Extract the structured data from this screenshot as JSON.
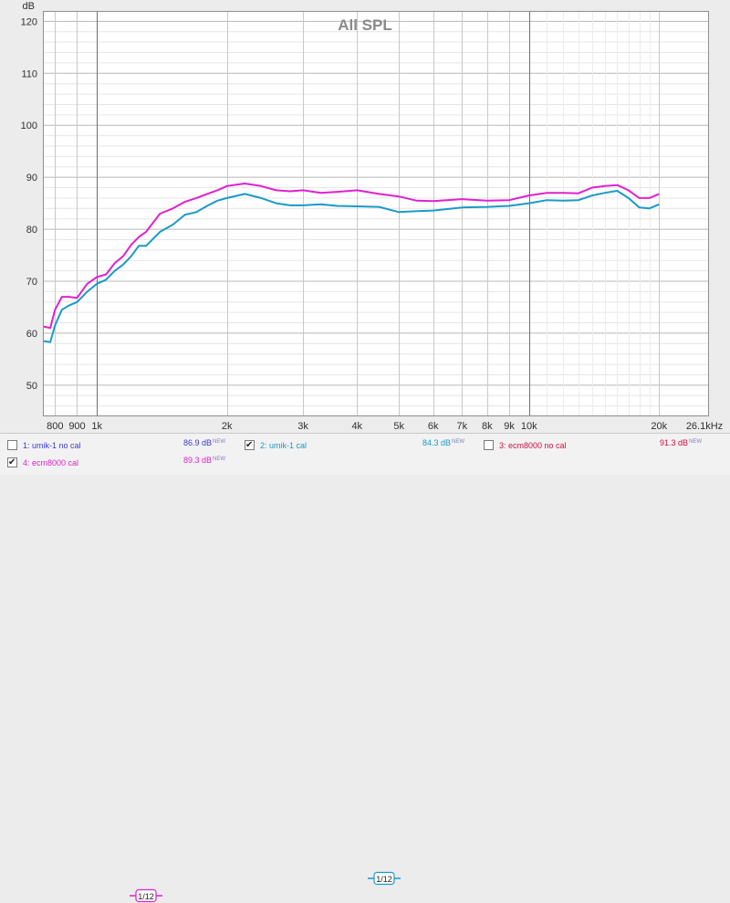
{
  "chart_data": {
    "type": "line",
    "title": "All SPL",
    "ylabel": "dB",
    "xscale": "log",
    "xlim": [
      750,
      26100
    ],
    "ylim": [
      44,
      122
    ],
    "grid": true,
    "x_ticks": [
      {
        "v": 800,
        "label": "800"
      },
      {
        "v": 900,
        "label": "900"
      },
      {
        "v": 1000,
        "label": "1k"
      },
      {
        "v": 2000,
        "label": "2k"
      },
      {
        "v": 3000,
        "label": "3k"
      },
      {
        "v": 4000,
        "label": "4k"
      },
      {
        "v": 5000,
        "label": "5k"
      },
      {
        "v": 6000,
        "label": "6k"
      },
      {
        "v": 7000,
        "label": "7k"
      },
      {
        "v": 8000,
        "label": "8k"
      },
      {
        "v": 9000,
        "label": "9k"
      },
      {
        "v": 10000,
        "label": "10k"
      },
      {
        "v": 20000,
        "label": "20k"
      },
      {
        "v": 26100,
        "label": "26.1kHz"
      }
    ],
    "y_ticks": [
      120,
      110,
      100,
      90,
      80,
      70,
      60,
      50
    ],
    "series": [
      {
        "name": "umik-1 no cal",
        "visible": false,
        "color": "#3a3ad0",
        "x": [],
        "y": []
      },
      {
        "name": "umik-1 cal",
        "visible": true,
        "color": "#1a9ac8",
        "x": [
          750,
          780,
          800,
          830,
          860,
          900,
          950,
          1000,
          1050,
          1100,
          1150,
          1200,
          1250,
          1300,
          1400,
          1500,
          1600,
          1700,
          1800,
          1900,
          2000,
          2200,
          2400,
          2600,
          2800,
          3000,
          3300,
          3600,
          4000,
          4500,
          5000,
          5500,
          6000,
          7000,
          8000,
          9000,
          10000,
          11000,
          12000,
          13000,
          14000,
          15000,
          16000,
          17000,
          18000,
          19000,
          20000
        ],
        "y": [
          58.5,
          58.3,
          61.5,
          64.5,
          65.3,
          66.0,
          68.0,
          69.5,
          70.3,
          72.0,
          73.2,
          74.8,
          76.8,
          76.8,
          79.5,
          80.9,
          82.8,
          83.3,
          84.5,
          85.5,
          86.0,
          86.8,
          86.0,
          85.0,
          84.6,
          84.6,
          84.8,
          84.5,
          84.4,
          84.3,
          83.3,
          83.5,
          83.6,
          84.2,
          84.3,
          84.5,
          85.0,
          85.6,
          85.5,
          85.6,
          86.5,
          87.0,
          87.4,
          86.0,
          84.2,
          84.0,
          84.8
        ]
      },
      {
        "name": "ecm8000 no cal",
        "visible": false,
        "color": "#d01040",
        "x": [],
        "y": []
      },
      {
        "name": "ecm8000 cal",
        "visible": true,
        "color": "#e020d0",
        "x": [
          750,
          780,
          800,
          830,
          860,
          900,
          950,
          1000,
          1050,
          1100,
          1150,
          1200,
          1250,
          1300,
          1400,
          1500,
          1600,
          1700,
          1800,
          1900,
          2000,
          2200,
          2400,
          2600,
          2800,
          3000,
          3300,
          3600,
          4000,
          4500,
          5000,
          5500,
          6000,
          7000,
          8000,
          9000,
          10000,
          11000,
          12000,
          13000,
          14000,
          15000,
          16000,
          17000,
          18000,
          19000,
          20000
        ],
        "y": [
          61.3,
          61.0,
          64.5,
          67.0,
          67.0,
          66.8,
          69.5,
          70.8,
          71.3,
          73.5,
          74.8,
          77.0,
          78.5,
          79.5,
          83.0,
          84.0,
          85.3,
          86.0,
          86.8,
          87.5,
          88.3,
          88.8,
          88.3,
          87.5,
          87.3,
          87.5,
          87.0,
          87.2,
          87.5,
          86.8,
          86.3,
          85.5,
          85.4,
          85.8,
          85.5,
          85.6,
          86.5,
          87.0,
          87.0,
          86.9,
          88.0,
          88.3,
          88.5,
          87.5,
          86.0,
          86.0,
          86.8
        ]
      }
    ]
  },
  "legend": [
    {
      "label": "1: umik-1 no cal",
      "checked": false,
      "value": "86.9 dB",
      "badge": "NEW",
      "color": "#3a3ad0"
    },
    {
      "label": "2: umik-1 cal",
      "checked": true,
      "value": "84.3 dB",
      "badge": "NEW",
      "color": "#1a9ac8",
      "smoothing": "1/12"
    },
    {
      "label": "3: ecm8000 no cal",
      "checked": false,
      "value": "91.3 dB",
      "badge": "NEW",
      "color": "#d01040"
    },
    {
      "label": "4: ecm8000 cal",
      "checked": true,
      "value": "89.3 dB",
      "badge": "NEW",
      "color": "#e020d0",
      "smoothing": "1/12"
    }
  ]
}
